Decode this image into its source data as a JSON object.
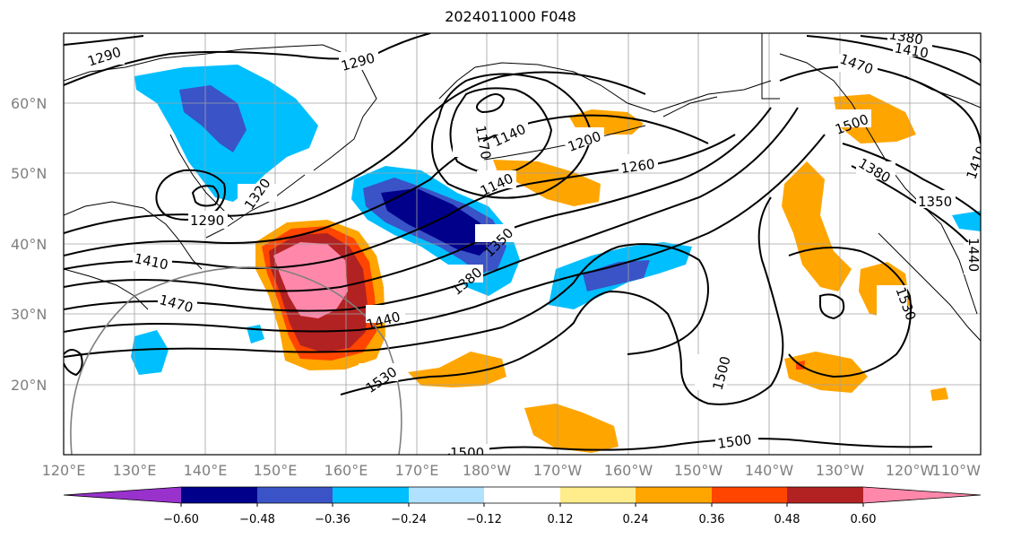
{
  "title": "2024011000 F048",
  "map": {
    "lon_labels": [
      "120°E",
      "130°E",
      "140°E",
      "150°E",
      "160°E",
      "170°E",
      "180°W",
      "170°W",
      "160°W",
      "150°W",
      "140°W",
      "130°W",
      "120°W",
      "110°W"
    ],
    "lat_labels": [
      "20°N",
      "30°N",
      "40°N",
      "50°N",
      "60°N"
    ],
    "contour_labels": [
      "1290",
      "1290",
      "1320",
      "1290",
      "1410",
      "1470",
      "1170",
      "1140",
      "1140",
      "1200",
      "1260",
      "1350",
      "1380",
      "1440",
      "1530",
      "1500",
      "1500",
      "1500",
      "1470",
      "1500",
      "1380",
      "1410",
      "1380",
      "1350",
      "1530",
      "1440",
      "1410"
    ],
    "colors": {
      "contour": "#000000",
      "grid": "#a0a0a0",
      "coast": "#000000"
    }
  },
  "colorbar": {
    "ticks": [
      "−0.60",
      "−0.48",
      "−0.36",
      "−0.24",
      "−0.12",
      "0.12",
      "0.24",
      "0.36",
      "0.48",
      "0.60"
    ],
    "colors": [
      "#9932CC",
      "#00008B",
      "#3A53C6",
      "#00BFFF",
      "#B0E2FF",
      "#FFFFFF",
      "#FFEC8B",
      "#FFA500",
      "#FF4500",
      "#B22222",
      "#FF88AA"
    ]
  }
}
